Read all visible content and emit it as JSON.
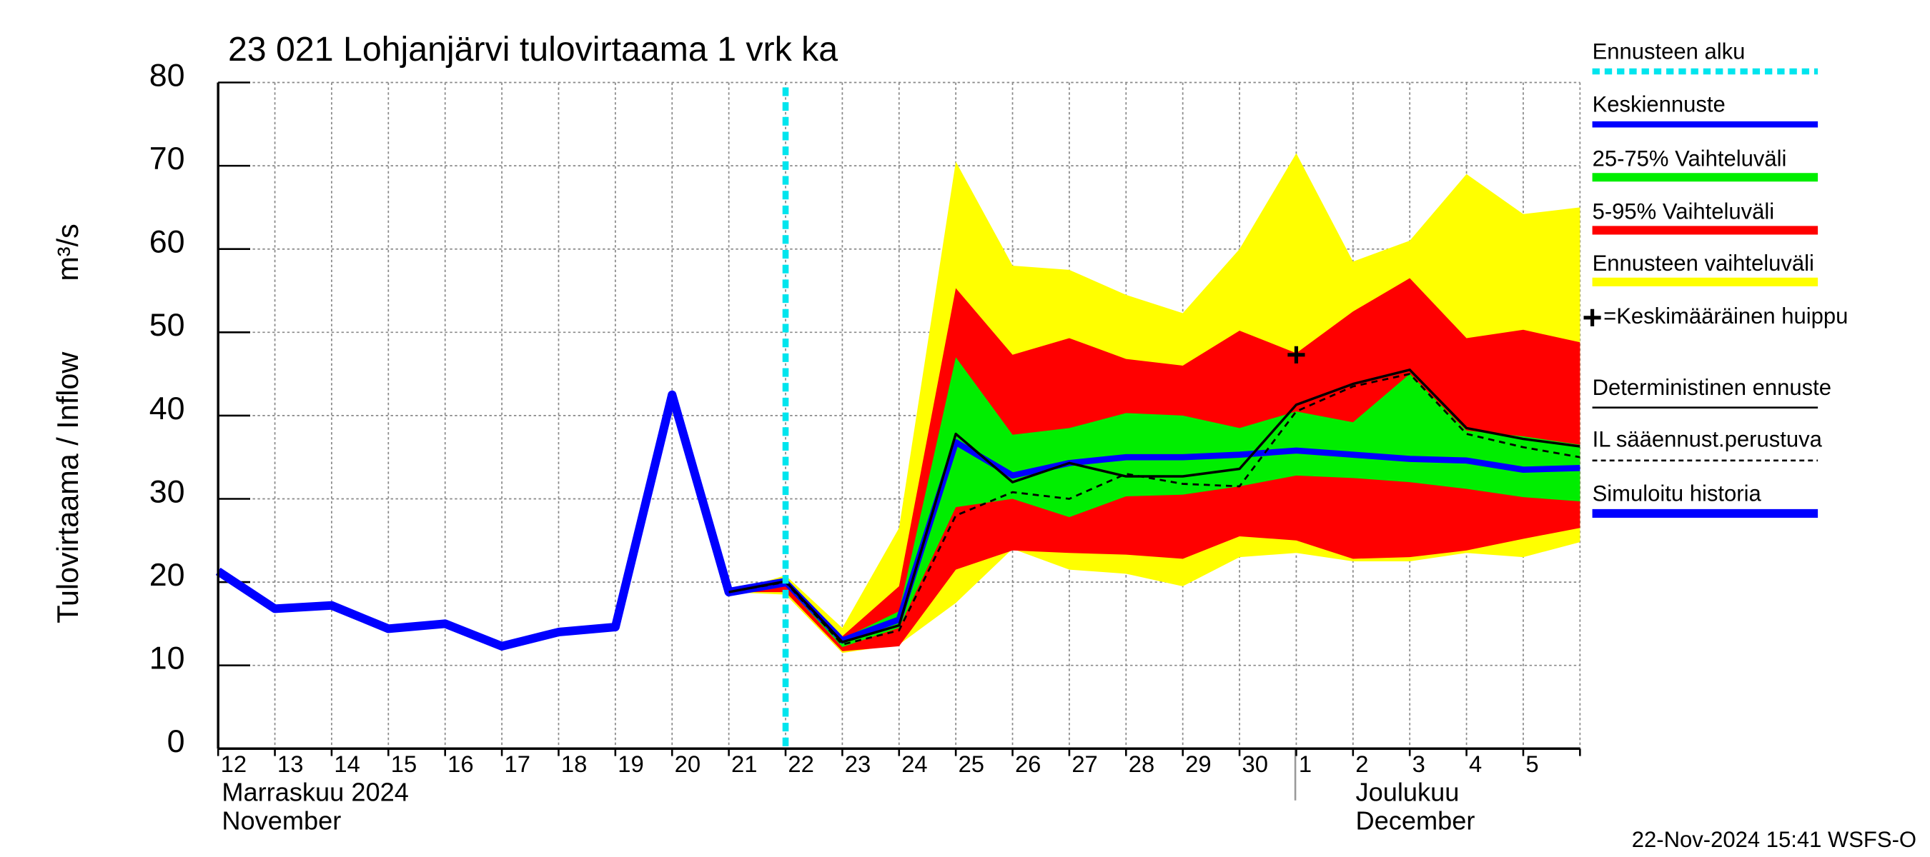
{
  "chart_data": {
    "type": "line",
    "title": "23 021 Lohjanjärvi tulovirtaama 1 vrk ka",
    "y_label": "Tulovirtaama / Inflow",
    "y_unit": "m³/s",
    "timestamp": "22-Nov-2024 15:41 WSFS-O",
    "months": [
      {
        "fi": "Marraskuu 2024",
        "en": "November"
      },
      {
        "fi": "Joulukuu",
        "en": "December"
      }
    ],
    "categories": [
      "12",
      "13",
      "14",
      "15",
      "16",
      "17",
      "18",
      "19",
      "20",
      "21",
      "22",
      "23",
      "24",
      "25",
      "26",
      "27",
      "28",
      "29",
      "30",
      "1",
      "2",
      "3",
      "4",
      "5",
      null
    ],
    "ylim": [
      0,
      80
    ],
    "yticks": [
      0,
      10,
      20,
      30,
      40,
      50,
      60,
      70,
      80
    ],
    "grid": true,
    "forecast_start": {
      "name": "Ennusteen alku",
      "category": 10,
      "color": "#00e5ee"
    },
    "peak": {
      "name": "=Keskimääräinen huippu",
      "category": 19,
      "value": 47.3
    },
    "series": [
      {
        "name": "Keskiennuste",
        "style": "line",
        "color": "#0000ff",
        "values": [
          null,
          null,
          null,
          null,
          null,
          null,
          null,
          null,
          null,
          null,
          20.0,
          13.0,
          15.5,
          36.8,
          32.8,
          34.3,
          35.0,
          35.0,
          35.3,
          35.8,
          35.3,
          34.8,
          34.6,
          33.5,
          33.7
        ]
      },
      {
        "name": "25-75% Vaihteluväli",
        "style": "band",
        "color": "#00ee00",
        "upper": [
          null,
          null,
          null,
          null,
          null,
          null,
          null,
          null,
          null,
          18.8,
          20.2,
          13.2,
          16.5,
          47.0,
          37.7,
          38.5,
          40.3,
          40.0,
          38.5,
          40.5,
          39.2,
          45.0,
          38.2,
          37.5,
          36.5
        ],
        "lower": [
          null,
          null,
          null,
          null,
          null,
          null,
          null,
          null,
          null,
          18.8,
          19.5,
          12.2,
          14.5,
          29.0,
          30.0,
          27.8,
          30.3,
          30.5,
          31.5,
          32.8,
          32.5,
          32.0,
          31.2,
          30.2,
          29.7
        ]
      },
      {
        "name": "5-95% Vaihteluväli",
        "style": "band",
        "color": "#ff0000",
        "upper": [
          null,
          null,
          null,
          null,
          null,
          null,
          null,
          null,
          null,
          18.8,
          20.5,
          13.5,
          19.5,
          55.3,
          47.3,
          49.3,
          46.8,
          46.0,
          50.2,
          47.5,
          52.5,
          56.5,
          49.3,
          50.3,
          48.8
        ],
        "lower": [
          null,
          null,
          null,
          null,
          null,
          null,
          null,
          null,
          null,
          18.8,
          18.8,
          11.7,
          12.3,
          21.5,
          23.8,
          23.5,
          23.3,
          22.8,
          25.5,
          25.0,
          22.8,
          23.0,
          23.8,
          25.2,
          26.5
        ]
      },
      {
        "name": "Ennusteen vaihteluväli",
        "style": "band",
        "color": "#ffff00",
        "upper": [
          null,
          null,
          null,
          null,
          null,
          null,
          null,
          null,
          null,
          18.8,
          20.8,
          14.5,
          26.5,
          70.5,
          58.0,
          57.5,
          54.5,
          52.3,
          60.0,
          71.5,
          58.5,
          61.0,
          69.0,
          64.2,
          65.0
        ],
        "lower": [
          null,
          null,
          null,
          null,
          null,
          null,
          null,
          null,
          null,
          18.8,
          18.5,
          11.5,
          12.5,
          17.5,
          24.0,
          21.5,
          21.0,
          19.5,
          23.0,
          23.5,
          22.5,
          22.5,
          23.5,
          23.0,
          24.8
        ]
      },
      {
        "name": "Deterministinen ennuste",
        "style": "line",
        "color": "#000000",
        "values": [
          null,
          null,
          null,
          null,
          null,
          null,
          null,
          null,
          null,
          18.8,
          20.1,
          12.8,
          14.8,
          37.8,
          32.0,
          34.3,
          32.7,
          32.7,
          33.6,
          41.3,
          43.8,
          45.5,
          38.5,
          37.2,
          36.3
        ]
      },
      {
        "name": "IL sääennust.perustuva",
        "style": "dashed",
        "color": "#000000",
        "values": [
          null,
          null,
          null,
          null,
          null,
          null,
          null,
          null,
          null,
          18.8,
          20.0,
          12.5,
          14.2,
          28.0,
          30.8,
          30.0,
          33.0,
          31.8,
          31.5,
          40.5,
          43.5,
          45.0,
          37.8,
          36.2,
          35.0
        ]
      },
      {
        "name": "Simuloitu historia",
        "style": "history",
        "color": "#0000ff",
        "values": [
          21.3,
          16.8,
          17.2,
          14.4,
          15.0,
          12.3,
          14.0,
          14.6,
          42.5,
          18.8,
          20.0,
          null,
          null,
          null,
          null,
          null,
          null,
          null,
          null,
          null,
          null,
          null,
          null,
          null,
          null
        ]
      }
    ]
  }
}
